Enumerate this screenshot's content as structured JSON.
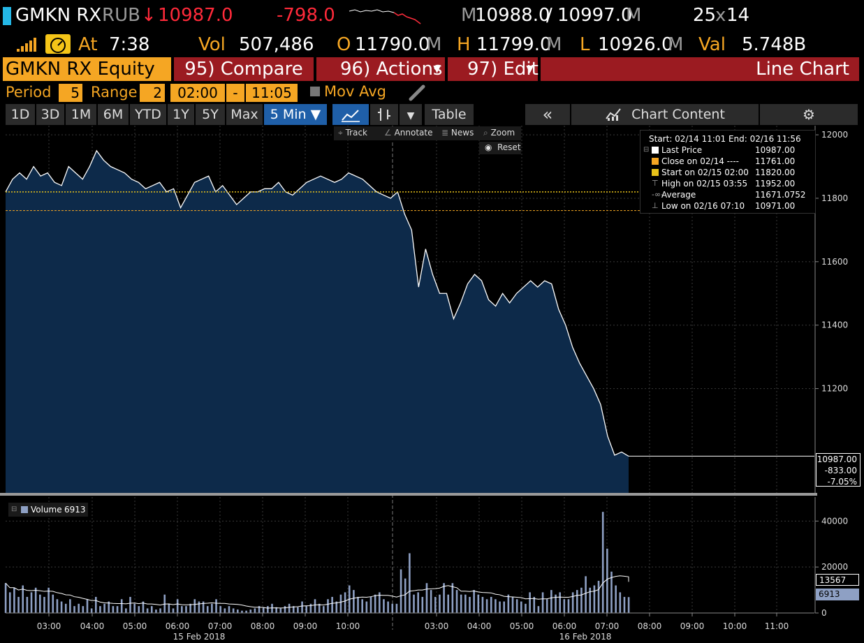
{
  "header": {
    "ticker": "GMKN RX",
    "currency": "RUB",
    "arrow": "↓",
    "last_price": "10987.0",
    "change": "-798.0",
    "bid_prefix": "M",
    "bid": "10988.0",
    "slash": "/",
    "ask": "10997.0",
    "ask_suffix": "M",
    "size_bid": "25",
    "size_x": "x",
    "size_ask": "14",
    "at_label": "At",
    "time": "7:38",
    "vol_label": "Vol",
    "vol": "507,486",
    "open_label": "O",
    "open": "11790.0",
    "open_suffix": "M",
    "high_label": "H",
    "high": "11799.0",
    "high_suffix": "M",
    "low_label": "L",
    "low": "10926.0",
    "low_suffix": "M",
    "val_label": "Val",
    "val": "5.748B"
  },
  "function_bar": {
    "security": "GMKN RX Equity",
    "compare": "95) Compare",
    "actions": "96) Actions",
    "edit": "97) Edit",
    "chart_title": "Line Chart"
  },
  "settings": {
    "period_label": "Period",
    "period_value": "5",
    "range_label": "Range",
    "range_value": "2",
    "start_time": "02:00",
    "dash": "-",
    "end_time": "11:05",
    "mov_avg": "Mov Avg"
  },
  "tabs": [
    "1D",
    "3D",
    "1M",
    "6M",
    "YTD",
    "1Y",
    "5Y",
    "Max"
  ],
  "selected_tab": "5 Min ▼",
  "toolbar": {
    "table": "Table",
    "collapse": "«",
    "chart_content": "Chart Content"
  },
  "tools": {
    "track": "Track",
    "annotate": "Annotate",
    "news": "News",
    "zoom": "Zoom",
    "reset": "Reset"
  },
  "legend": {
    "range": "Start: 02/14 11:01 End: 02/16 11:56",
    "rows": [
      {
        "label": "Last Price",
        "value": "10987.00",
        "color": "#ffffff"
      },
      {
        "label": "Close on 02/14 ----",
        "value": "11761.00",
        "color": "#f5a623"
      },
      {
        "label": "Start on 02/15 02:00",
        "value": "11820.00",
        "color": "#e8c21a"
      },
      {
        "label": "High on 02/15 03:55",
        "value": "11952.00",
        "color": ""
      },
      {
        "label": "Average",
        "value": "11671.0752",
        "color": ""
      },
      {
        "label": "Low on 02/16 07:10",
        "value": "10971.00",
        "color": ""
      }
    ]
  },
  "price_box": {
    "price": "10987.00",
    "change": "-833.00",
    "pct": "-7.05%"
  },
  "volume_legend": {
    "label": "Volume",
    "value": "6913"
  },
  "volume_box": {
    "ma": "13567",
    "last": "6913"
  },
  "chart_data": [
    {
      "type": "area",
      "series": [
        {
          "name": "Last Price",
          "values": [
            11820,
            11860,
            11880,
            11860,
            11900,
            11870,
            11880,
            11850,
            11840,
            11900,
            11880,
            11860,
            11900,
            11950,
            11920,
            11900,
            11890,
            11880,
            11860,
            11850,
            11830,
            11840,
            11850,
            11820,
            11830,
            11770,
            11810,
            11850,
            11860,
            11870,
            11820,
            11840,
            11810,
            11780,
            11800,
            11820,
            11820,
            11830,
            11830,
            11850,
            11820,
            11810,
            11830,
            11850,
            11860,
            11870,
            11860,
            11850,
            11860,
            11880,
            11870,
            11860,
            11840,
            11820,
            11810,
            11800,
            11820,
            11750,
            11700,
            11520,
            11640,
            11560,
            11500,
            11500,
            11420,
            11470,
            11530,
            11560,
            11540,
            11480,
            11460,
            11500,
            11470,
            11500,
            11520,
            11540,
            11520,
            11540,
            11530,
            11450,
            11400,
            11330,
            11280,
            11240,
            11200,
            11150,
            11050,
            10990,
            11000,
            10987
          ]
        },
        {
          "name": "Close on 02/14",
          "values": [
            11761
          ]
        },
        {
          "name": "Start on 02/15 02:00",
          "values": [
            11820
          ]
        }
      ],
      "x_ticks": [
        "03:00",
        "04:00",
        "05:00",
        "06:00",
        "07:00",
        "08:00",
        "09:00",
        "10:00",
        "03:00",
        "04:00",
        "05:00",
        "06:00",
        "07:00",
        "08:00",
        "09:00",
        "10:00",
        "11:00"
      ],
      "date_labels": [
        "15 Feb 2018",
        "16 Feb 2018"
      ],
      "y_ticks": [
        "12000",
        "11800",
        "11600",
        "11400",
        "11200"
      ],
      "ylim": [
        10880,
        12020
      ],
      "grid": true,
      "legend_position": "top-right"
    },
    {
      "type": "bar",
      "series": [
        {
          "name": "Volume",
          "values": [
            13000,
            9000,
            11000,
            7000,
            12000,
            7000,
            9000,
            11000,
            8000,
            7000,
            11000,
            8000,
            6000,
            5000,
            4000,
            6000,
            3000,
            4000,
            3000,
            6000,
            2000,
            7000,
            3000,
            4000,
            5000,
            3000,
            3000,
            6000,
            2000,
            7000,
            4000,
            3000,
            5000,
            2000,
            3000,
            1500,
            2000,
            8000,
            4000,
            2000,
            6000,
            3000,
            3000,
            4000,
            6000,
            5000,
            5000,
            3000,
            4000,
            6000,
            3000,
            2000,
            3000,
            2000,
            1500,
            1000,
            1000,
            1500,
            2000,
            3000,
            2500,
            3000,
            4000,
            2500,
            2000,
            3000,
            4000,
            3000,
            2500,
            5000,
            3000,
            4000,
            6000,
            4000,
            3000,
            6000,
            7000,
            5000,
            8000,
            9000,
            12000,
            10000,
            7000,
            6000,
            5000,
            7000,
            8000,
            9000,
            6000,
            5000,
            4000,
            4000,
            19000,
            15000,
            26000,
            8000,
            9000,
            7000,
            13000,
            10000,
            7000,
            8000,
            13000,
            8000,
            13000,
            10000,
            8000,
            8000,
            7000,
            10000,
            8000,
            7000,
            6000,
            7000,
            6000,
            5000,
            5000,
            8000,
            7000,
            6000,
            5000,
            4000,
            9000,
            7000,
            3000,
            9000,
            6000,
            10000,
            8000,
            9000,
            6000,
            6000,
            9000,
            10000,
            11000,
            16000,
            11000,
            12000,
            14000,
            44000,
            28000,
            18000,
            12000,
            9000,
            7000,
            6913
          ]
        },
        {
          "name": "Volume MA",
          "values": [
            13567
          ]
        }
      ],
      "y_ticks": [
        "40000",
        "20000",
        "0"
      ],
      "ylim": [
        0,
        48000
      ],
      "grid": true
    }
  ],
  "colors": {
    "orange": "#f5a623",
    "red_bar": "#9b1b21",
    "area_fill": "#0d2a4a",
    "volume_bar": "#8ea0c4",
    "selected_tab": "#1f5fa8"
  }
}
